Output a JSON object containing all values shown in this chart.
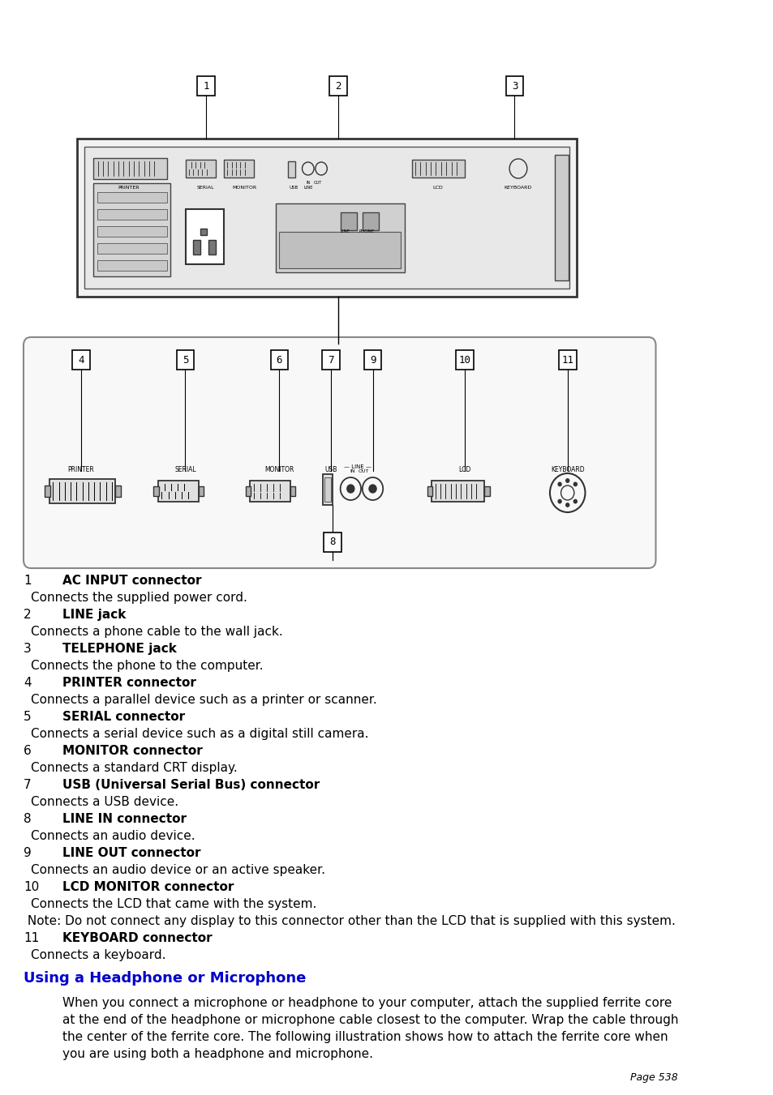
{
  "page_bg": "#ffffff",
  "text_color": "#000000",
  "blue_heading_color": "#0000cc",
  "page_number": "Page 538",
  "items": [
    {
      "num": "1",
      "label": "AC INPUT connector",
      "desc": "Connects the supplied power cord."
    },
    {
      "num": "2",
      "label": "LINE jack",
      "desc": "Connects a phone cable to the wall jack."
    },
    {
      "num": "3",
      "label": "TELEPHONE jack",
      "desc": "Connects the phone to the computer."
    },
    {
      "num": "4",
      "label": "PRINTER connector",
      "desc": "Connects a parallel device such as a printer or scanner."
    },
    {
      "num": "5",
      "label": "SERIAL connector",
      "desc": "Connects a serial device such as a digital still camera."
    },
    {
      "num": "6",
      "label": "MONITOR connector",
      "desc": "Connects a standard CRT display."
    },
    {
      "num": "7",
      "label": "USB (Universal Serial Bus) connector",
      "desc": "Connects a USB device."
    },
    {
      "num": "8",
      "label": "LINE IN connector",
      "desc": "Connects an audio device."
    },
    {
      "num": "9",
      "label": "LINE OUT connector",
      "desc": "Connects an audio device or an active speaker."
    },
    {
      "num": "10",
      "label": "LCD MONITOR connector",
      "desc": "Connects the LCD that came with the system."
    },
    {
      "num": "10_note",
      "label": "",
      "desc": " Note: Do not connect any display to this connector other than the LCD that is supplied with this system."
    },
    {
      "num": "11",
      "label": "KEYBOARD connector",
      "desc": "Connects a keyboard."
    }
  ],
  "heading": "Using a Headphone or Microphone",
  "body_text": "When you connect a microphone or headphone to your computer, attach the supplied ferrite core\nat the end of the headphone or microphone cable closest to the computer. Wrap the cable through\nthe center of the ferrite core. The following illustration shows how to attach the ferrite core when\nyou are using both a headphone and microphone.",
  "figsize": [
    9.54,
    13.51
  ],
  "dpi": 100
}
